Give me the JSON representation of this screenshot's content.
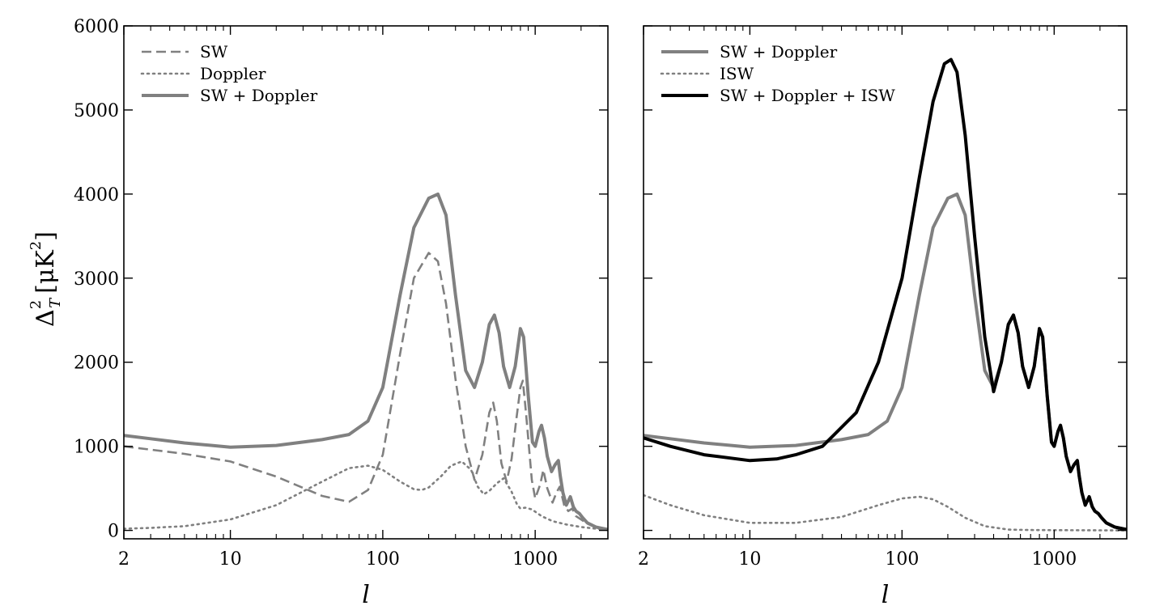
{
  "chart_data": [
    {
      "type": "line",
      "xscale": "log",
      "xlim": [
        2,
        3000
      ],
      "ylim": [
        -100,
        6000
      ],
      "xlabel": "l",
      "ylabel": "Δ²_T [μK²]",
      "xticks": [
        2,
        10,
        100,
        1000
      ],
      "xtick_labels": [
        "2",
        "10",
        "100",
        "1000"
      ],
      "yticks": [
        0,
        1000,
        2000,
        3000,
        4000,
        5000,
        6000
      ],
      "ytick_labels": [
        "0",
        "1000",
        "2000",
        "3000",
        "4000",
        "5000",
        "6000"
      ],
      "legend_position": "top-left",
      "grid": false,
      "series": [
        {
          "name": "SW",
          "style": "dashed",
          "color": "#808080",
          "x": [
            2,
            3,
            5,
            10,
            20,
            40,
            60,
            80,
            100,
            130,
            160,
            200,
            230,
            260,
            300,
            350,
            400,
            450,
            500,
            530,
            560,
            600,
            650,
            700,
            750,
            800,
            830,
            870,
            950,
            1000,
            1080,
            1130,
            1200,
            1300,
            1380,
            1450,
            1550,
            1650,
            1750,
            1850,
            2000,
            2200,
            2500,
            3000
          ],
          "y": [
            1000,
            960,
            910,
            820,
            640,
            410,
            340,
            480,
            900,
            2100,
            3000,
            3300,
            3200,
            2700,
            1800,
            1000,
            600,
            900,
            1400,
            1520,
            1300,
            800,
            580,
            850,
            1300,
            1700,
            1780,
            1400,
            600,
            380,
            550,
            720,
            500,
            330,
            450,
            520,
            300,
            230,
            260,
            170,
            130,
            80,
            40,
            15
          ]
        },
        {
          "name": "Doppler",
          "style": "dotted",
          "color": "#808080",
          "x": [
            2,
            3,
            5,
            10,
            20,
            40,
            60,
            80,
            100,
            130,
            160,
            180,
            200,
            240,
            280,
            330,
            380,
            420,
            460,
            500,
            560,
            620,
            700,
            760,
            800,
            860,
            950,
            1100,
            1300,
            1600,
            2000,
            2500,
            3000
          ],
          "y": [
            20,
            30,
            50,
            130,
            300,
            580,
            740,
            770,
            720,
            580,
            490,
            480,
            510,
            640,
            770,
            820,
            720,
            520,
            430,
            470,
            560,
            620,
            460,
            310,
            260,
            270,
            250,
            170,
            110,
            70,
            40,
            20,
            10
          ]
        },
        {
          "name": "SW + Doppler",
          "style": "solid",
          "color": "#808080",
          "x": [
            2,
            3,
            5,
            10,
            20,
            40,
            60,
            80,
            100,
            130,
            160,
            200,
            230,
            260,
            300,
            350,
            400,
            450,
            500,
            540,
            580,
            620,
            680,
            740,
            800,
            840,
            900,
            960,
            1000,
            1060,
            1100,
            1150,
            1200,
            1280,
            1350,
            1420,
            1460,
            1520,
            1600,
            1700,
            1780,
            1850,
            1950,
            2050,
            2200,
            2500,
            3000
          ],
          "y": [
            1130,
            1090,
            1040,
            990,
            1010,
            1080,
            1140,
            1300,
            1700,
            2800,
            3600,
            3950,
            4000,
            3750,
            2800,
            1900,
            1700,
            2000,
            2450,
            2560,
            2350,
            1950,
            1700,
            1950,
            2400,
            2300,
            1600,
            1050,
            1000,
            1180,
            1250,
            1100,
            880,
            700,
            780,
            830,
            650,
            450,
            300,
            400,
            280,
            230,
            200,
            150,
            90,
            40,
            10
          ]
        }
      ]
    },
    {
      "type": "line",
      "xscale": "log",
      "xlim": [
        2,
        3000
      ],
      "ylim": [
        -100,
        6000
      ],
      "xlabel": "l",
      "ylabel": "",
      "xticks": [
        2,
        10,
        100,
        1000
      ],
      "xtick_labels": [
        "2",
        "10",
        "100",
        "1000"
      ],
      "legend_position": "top-left",
      "grid": false,
      "series": [
        {
          "name": "SW + Doppler",
          "style": "solid",
          "color": "#808080",
          "x": [
            2,
            3,
            5,
            10,
            20,
            40,
            60,
            80,
            100,
            130,
            160,
            200,
            230,
            260,
            300,
            350,
            400,
            450,
            500,
            540,
            580,
            620,
            680,
            740,
            800,
            840,
            900,
            960,
            1000,
            1060,
            1100,
            1150,
            1200,
            1280,
            1350,
            1420,
            1460,
            1520,
            1600,
            1700,
            1780,
            1850,
            1950,
            2050,
            2200,
            2500,
            3000
          ],
          "y": [
            1130,
            1090,
            1040,
            990,
            1010,
            1080,
            1140,
            1300,
            1700,
            2800,
            3600,
            3950,
            4000,
            3750,
            2800,
            1900,
            1700,
            2000,
            2450,
            2560,
            2350,
            1950,
            1700,
            1950,
            2400,
            2300,
            1600,
            1050,
            1000,
            1180,
            1250,
            1100,
            880,
            700,
            780,
            830,
            650,
            450,
            300,
            400,
            280,
            230,
            200,
            150,
            90,
            40,
            10
          ]
        },
        {
          "name": "ISW",
          "style": "dotted",
          "color": "#808080",
          "x": [
            2,
            3,
            5,
            10,
            20,
            40,
            70,
            100,
            130,
            160,
            200,
            260,
            350,
            500,
            700,
            1000,
            1500,
            2000,
            3000
          ],
          "y": [
            420,
            300,
            180,
            90,
            90,
            160,
            300,
            380,
            400,
            370,
            280,
            150,
            50,
            10,
            5,
            3,
            2,
            1,
            0
          ]
        },
        {
          "name": "SW + Doppler + ISW",
          "style": "solid",
          "color": "#000000",
          "x": [
            2,
            3,
            5,
            10,
            15,
            20,
            30,
            50,
            70,
            100,
            130,
            160,
            190,
            210,
            230,
            260,
            300,
            350,
            400,
            450,
            500,
            540,
            580,
            620,
            680,
            740,
            800,
            840,
            900,
            960,
            1000,
            1060,
            1100,
            1150,
            1200,
            1280,
            1350,
            1420,
            1460,
            1520,
            1600,
            1700,
            1780,
            1850,
            1950,
            2050,
            2200,
            2500,
            3000
          ],
          "y": [
            1100,
            1000,
            900,
            830,
            850,
            900,
            1000,
            1400,
            2000,
            3000,
            4200,
            5100,
            5550,
            5600,
            5450,
            4700,
            3500,
            2300,
            1650,
            2000,
            2450,
            2560,
            2350,
            1950,
            1700,
            1950,
            2400,
            2300,
            1600,
            1050,
            1000,
            1180,
            1250,
            1100,
            880,
            700,
            780,
            830,
            650,
            450,
            300,
            400,
            280,
            230,
            200,
            150,
            90,
            40,
            10
          ]
        }
      ]
    }
  ]
}
